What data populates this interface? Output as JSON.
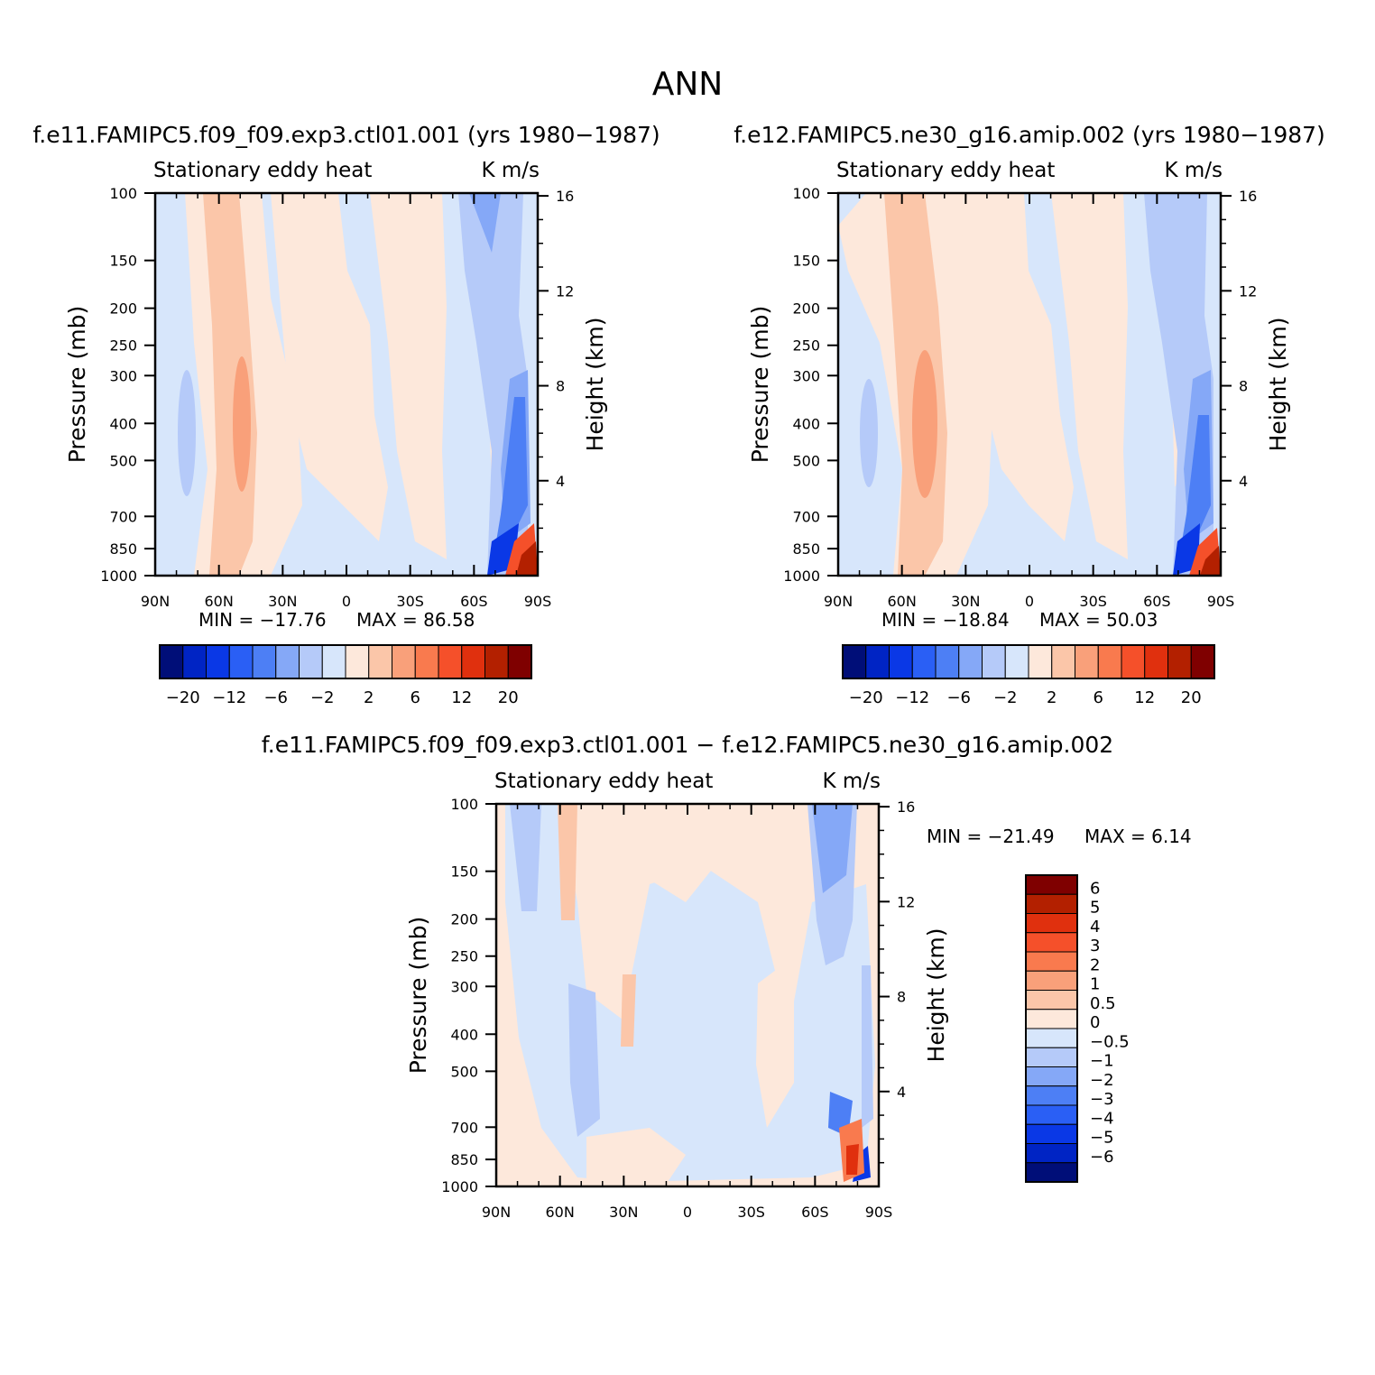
{
  "page_title": "ANN",
  "palette": {
    "main": [
      "#000e78",
      "#0024c4",
      "#0a38e6",
      "#2a5ff5",
      "#4d7ff5",
      "#85a8f7",
      "#b5caf9",
      "#d7e6fb",
      "#fde8db",
      "#fbc6a9",
      "#f9a07a",
      "#f97a4e",
      "#f5502a",
      "#e0300e",
      "#b32000",
      "#7f0000"
    ],
    "diff": [
      "#000e78",
      "#0024c4",
      "#0a38e6",
      "#2a5ff5",
      "#4d7ff5",
      "#85a8f7",
      "#b5caf9",
      "#d7e6fb",
      "#fde8db",
      "#fbc6a9",
      "#f9a07a",
      "#f97a4e",
      "#f5502a",
      "#e0300e",
      "#b32000",
      "#7f0000"
    ]
  },
  "chart_data": [
    {
      "type": "heatmap",
      "id": "panel-1",
      "title": "f.e11.FAMIPC5.f09_f09.exp3.ctl01.001 (yrs 1980-1987)",
      "left_string": "Stationary eddy heat",
      "right_string": "K m/s",
      "ylabel": "Pressure (mb)",
      "ylabel_right": "Height (km)",
      "xlabel": "",
      "x_ticks": [
        "90N",
        "60N",
        "30N",
        "0",
        "30S",
        "60S",
        "90S"
      ],
      "y_ticks": [
        100,
        150,
        200,
        250,
        300,
        400,
        500,
        700,
        850,
        1000
      ],
      "y_ticks_right": [
        16,
        12,
        8,
        4
      ],
      "xlim": [
        90,
        -90
      ],
      "ylim": [
        1000,
        100
      ],
      "min_label": "MIN = -17.76",
      "max_label": "MAX =  86.58",
      "min": -17.76,
      "max": 86.58,
      "colorbar": {
        "orientation": "horizontal",
        "labels": [
          "-20",
          "-12",
          "-6",
          "-2",
          "2",
          "6",
          "12",
          "20"
        ]
      }
    },
    {
      "type": "heatmap",
      "id": "panel-2",
      "title": "f.e12.FAMIPC5.ne30_g16.amip.002 (yrs 1980-1987)",
      "left_string": "Stationary eddy heat",
      "right_string": "K m/s",
      "ylabel": "Pressure (mb)",
      "ylabel_right": "Height (km)",
      "xlabel": "",
      "x_ticks": [
        "90N",
        "60N",
        "30N",
        "0",
        "30S",
        "60S",
        "90S"
      ],
      "y_ticks": [
        100,
        150,
        200,
        250,
        300,
        400,
        500,
        700,
        850,
        1000
      ],
      "y_ticks_right": [
        16,
        12,
        8,
        4
      ],
      "xlim": [
        90,
        -90
      ],
      "ylim": [
        1000,
        100
      ],
      "min_label": "MIN = -18.84",
      "max_label": "MAX =  50.03",
      "min": -18.84,
      "max": 50.03,
      "colorbar": {
        "orientation": "horizontal",
        "labels": [
          "-20",
          "-12",
          "-6",
          "-2",
          "2",
          "6",
          "12",
          "20"
        ]
      }
    },
    {
      "type": "heatmap",
      "id": "panel-3",
      "title": "f.e11.FAMIPC5.f09_f09.exp3.ctl01.001 - f.e12.FAMIPC5.ne30_g16.amip.002",
      "left_string": "Stationary eddy heat",
      "right_string": "K m/s",
      "ylabel": "Pressure (mb)",
      "ylabel_right": "Height (km)",
      "xlabel": "",
      "x_ticks": [
        "90N",
        "60N",
        "30N",
        "0",
        "30S",
        "60S",
        "90S"
      ],
      "y_ticks": [
        100,
        150,
        200,
        250,
        300,
        400,
        500,
        700,
        850,
        1000
      ],
      "y_ticks_right": [
        16,
        12,
        8,
        4
      ],
      "xlim": [
        90,
        -90
      ],
      "ylim": [
        1000,
        100
      ],
      "min_label": "MIN = -21.49",
      "max_label": "MAX =    6.14",
      "min": -21.49,
      "max": 6.14,
      "colorbar": {
        "orientation": "vertical",
        "labels": [
          "6",
          "5",
          "4",
          "3",
          "2",
          "1",
          "0.5",
          "0",
          "-0.5",
          "-1",
          "-2",
          "-3",
          "-4",
          "-5",
          "-6"
        ]
      }
    }
  ]
}
